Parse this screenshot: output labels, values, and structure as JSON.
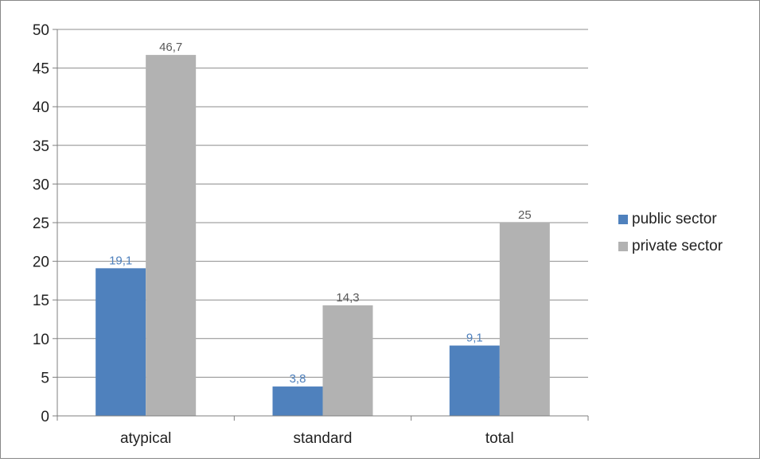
{
  "colors": {
    "public": "#4f81bd",
    "private": "#b2b2b2",
    "grid": "#8c8c8c",
    "axis": "#7f7f7f"
  },
  "chart_data": {
    "type": "bar",
    "title": "",
    "xlabel": "",
    "ylabel": "",
    "categories": [
      "atypical",
      "standard",
      "total"
    ],
    "series": [
      {
        "name": "public sector",
        "values": [
          19.1,
          3.8,
          9.1
        ],
        "labels": [
          "19,1",
          "3,8",
          "9,1"
        ]
      },
      {
        "name": "private sector",
        "values": [
          46.7,
          14.3,
          25
        ],
        "labels": [
          "46,7",
          "14,3",
          "25"
        ]
      }
    ],
    "ylim": [
      0,
      50
    ],
    "yticks": [
      0,
      5,
      10,
      15,
      20,
      25,
      30,
      35,
      40,
      45,
      50
    ],
    "grid": true,
    "legend_position": "right"
  }
}
